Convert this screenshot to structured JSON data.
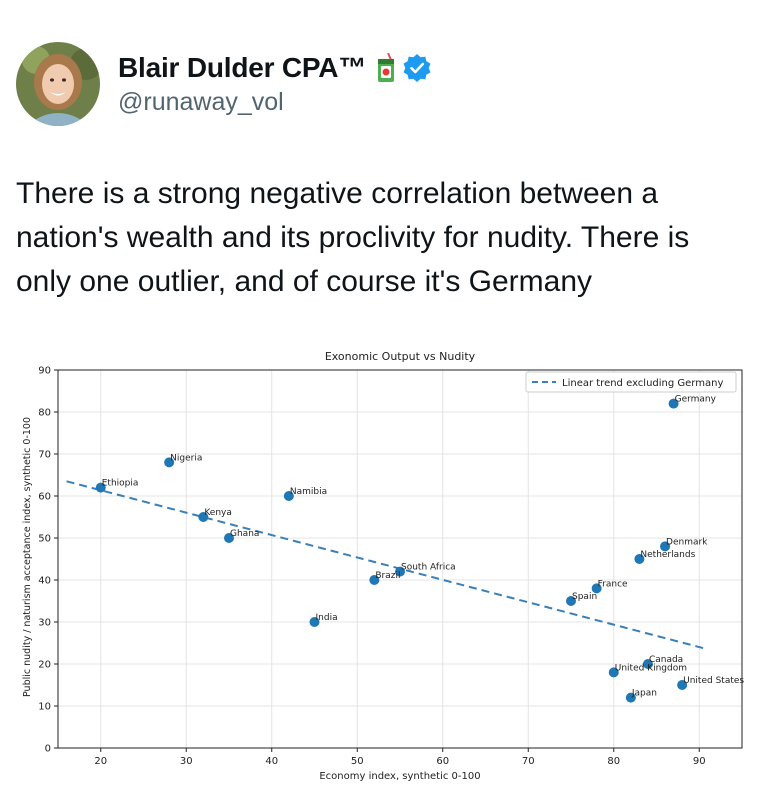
{
  "user": {
    "display_name": "Blair Dulder CPA™",
    "handle": "@runaway_vol",
    "badge_emoji_icon": "juice-box-icon",
    "verified_icon": "verified-badge-icon",
    "verified_color": "#1d9bf0"
  },
  "tweet": {
    "text": "There is a strong negative correlation between a nation's wealth and its proclivity for nudity. There is only one outlier, and of course it's Germany"
  },
  "chart_data": {
    "type": "scatter",
    "title": "Exonomic Output vs Nudity",
    "xlabel": "Economy index, synthetic 0-100",
    "ylabel": "Public nudity / naturism acceptance index, synthetic 0-100",
    "xlim": [
      15,
      95
    ],
    "ylim": [
      0,
      90
    ],
    "xticks": [
      20,
      30,
      40,
      50,
      60,
      70,
      80,
      90
    ],
    "yticks": [
      0,
      10,
      20,
      30,
      40,
      50,
      60,
      70,
      80,
      90
    ],
    "grid": true,
    "legend_position": "top-right",
    "legend": [
      "Linear trend excluding Germany"
    ],
    "point_color": "#1f77b4",
    "trend_color": "#3a7fb8",
    "points": [
      {
        "label": "Ethiopia",
        "x": 20,
        "y": 62
      },
      {
        "label": "Nigeria",
        "x": 28,
        "y": 68
      },
      {
        "label": "Kenya",
        "x": 32,
        "y": 55
      },
      {
        "label": "Ghana",
        "x": 35,
        "y": 50
      },
      {
        "label": "Namibia",
        "x": 42,
        "y": 60
      },
      {
        "label": "India",
        "x": 45,
        "y": 30
      },
      {
        "label": "Brazil",
        "x": 52,
        "y": 40
      },
      {
        "label": "South Africa",
        "x": 55,
        "y": 42
      },
      {
        "label": "Spain",
        "x": 75,
        "y": 35
      },
      {
        "label": "France",
        "x": 78,
        "y": 38
      },
      {
        "label": "United Kingdom",
        "x": 80,
        "y": 18
      },
      {
        "label": "Japan",
        "x": 82,
        "y": 12
      },
      {
        "label": "Netherlands",
        "x": 83,
        "y": 45
      },
      {
        "label": "Canada",
        "x": 84,
        "y": 20
      },
      {
        "label": "Denmark",
        "x": 86,
        "y": 48
      },
      {
        "label": "Germany",
        "x": 87,
        "y": 82
      },
      {
        "label": "United States",
        "x": 88,
        "y": 15
      }
    ],
    "trend": {
      "x": [
        16,
        91
      ],
      "y": [
        63.5,
        23.5
      ]
    }
  }
}
